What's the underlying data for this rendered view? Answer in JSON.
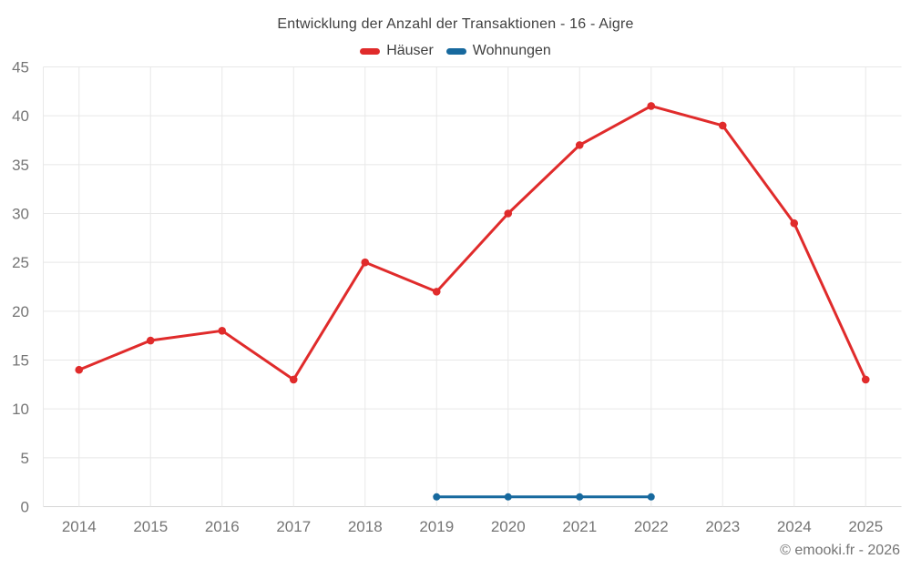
{
  "title": "Entwicklung der Anzahl der Transaktionen - 16 - Aigre",
  "copyright": "© emooki.fr - 2026",
  "colors": {
    "haeuser": "#e02b2b",
    "wohnungen": "#17699e",
    "grid": "#e8e8e8",
    "axis_line": "#d6d6d6",
    "axis_label": "#757575",
    "title_text": "#3f3f3f"
  },
  "chart_data": {
    "type": "line",
    "title": "Entwicklung der Anzahl der Transaktionen - 16 - Aigre",
    "categories": [
      "2014",
      "2015",
      "2016",
      "2017",
      "2018",
      "2019",
      "2020",
      "2021",
      "2022",
      "2023",
      "2024",
      "2025"
    ],
    "series": [
      {
        "name": "Häuser",
        "color": "#e02b2b",
        "start_index": 0,
        "values": [
          14,
          17,
          18,
          13,
          25,
          22,
          30,
          37,
          41,
          39,
          29,
          13
        ]
      },
      {
        "name": "Wohnungen",
        "color": "#17699e",
        "start_index": 5,
        "values": [
          1,
          1,
          1,
          1
        ]
      }
    ],
    "ylim": [
      0,
      45
    ],
    "ytick_step": 5,
    "grid": true,
    "legend_position": "top",
    "xlabel": "",
    "ylabel": ""
  }
}
